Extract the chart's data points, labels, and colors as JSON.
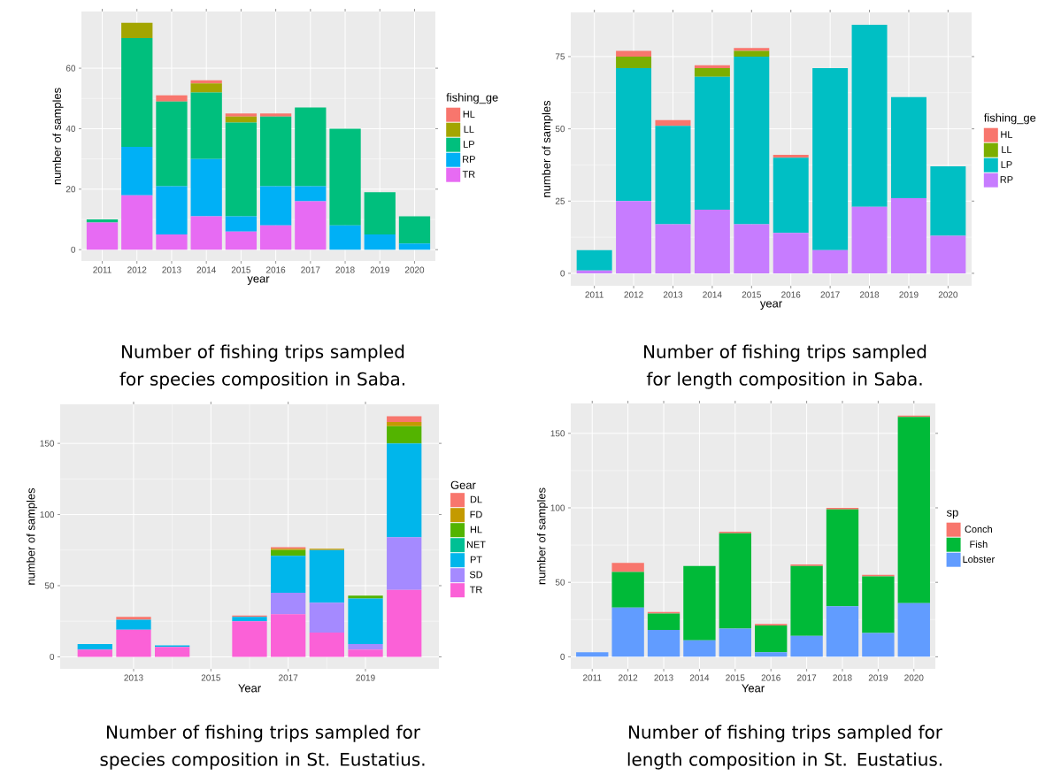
{
  "chart_data": [
    {
      "type": "bar",
      "stacked": true,
      "grid": true,
      "legend": "right",
      "xlabel": "year",
      "ylabel": "number of samples",
      "legend_title": "fishing_ge",
      "categories": [
        "2011",
        "2012",
        "2013",
        "2014",
        "2015",
        "2016",
        "2017",
        "2018",
        "2019",
        "2020"
      ],
      "ylim": [
        -3.75,
        78.75
      ],
      "yticks": [
        0,
        20,
        40,
        60
      ],
      "series": [
        {
          "name": "TR",
          "color": "#e76bf3",
          "values": [
            9,
            18,
            5,
            11,
            6,
            8,
            16,
            0,
            0,
            0
          ]
        },
        {
          "name": "RP",
          "color": "#00b0f6",
          "values": [
            0,
            16,
            16,
            19,
            5,
            13,
            5,
            8,
            5,
            2
          ]
        },
        {
          "name": "LP",
          "color": "#00bf7d",
          "values": [
            1,
            36,
            28,
            22,
            31,
            23,
            26,
            32,
            14,
            9
          ]
        },
        {
          "name": "LL",
          "color": "#a3a500",
          "values": [
            0,
            5,
            0,
            3,
            2,
            0,
            0,
            0,
            0,
            0
          ]
        },
        {
          "name": "HL",
          "color": "#f8766d",
          "values": [
            0,
            0,
            2,
            1,
            1,
            1,
            0,
            0,
            0,
            0
          ]
        }
      ],
      "annotations": [
        "Number of fishing trips sampled for species composition in Saba."
      ]
    },
    {
      "type": "bar",
      "stacked": true,
      "grid": true,
      "legend": "right",
      "xlabel": "year",
      "ylabel": "number of samples",
      "legend_title": "fishing_ge",
      "categories": [
        "2011",
        "2012",
        "2013",
        "2014",
        "2015",
        "2016",
        "2017",
        "2018",
        "2019",
        "2020"
      ],
      "ylim": [
        -4.3,
        90.3
      ],
      "yticks": [
        0,
        25,
        50,
        75
      ],
      "series": [
        {
          "name": "RP",
          "color": "#c77cff",
          "values": [
            1,
            25,
            17,
            22,
            17,
            14,
            8,
            23,
            26,
            13
          ]
        },
        {
          "name": "LP",
          "color": "#00bfc4",
          "values": [
            7,
            46,
            34,
            46,
            58,
            26,
            63,
            63,
            35,
            24
          ]
        },
        {
          "name": "LL",
          "color": "#7cae00",
          "values": [
            0,
            4,
            0,
            3,
            2,
            0,
            0,
            0,
            0,
            0
          ]
        },
        {
          "name": "HL",
          "color": "#f8766d",
          "values": [
            0,
            2,
            2,
            1,
            1,
            1,
            0,
            0,
            0,
            0
          ]
        }
      ],
      "annotations": [
        "Number of fishing trips sampled for length composition in Saba."
      ]
    },
    {
      "type": "bar",
      "stacked": true,
      "grid": true,
      "legend": "right",
      "xlabel": "Year",
      "ylabel": "number of samples",
      "legend_title": "Gear",
      "x": [
        2012,
        2013,
        2014,
        2016,
        2017,
        2018,
        2019,
        2020
      ],
      "xlim": [
        2011.1,
        2020.9
      ],
      "xticks": [
        2013,
        2015,
        2017,
        2019
      ],
      "ylim": [
        -8.45,
        177.45
      ],
      "yticks": [
        0,
        50,
        100,
        150
      ],
      "series": [
        {
          "name": "TR",
          "color": "#fb61d7",
          "values": [
            5,
            19,
            7,
            25,
            30,
            17,
            5,
            47
          ]
        },
        {
          "name": "SD",
          "color": "#a58aff",
          "values": [
            0,
            0,
            0,
            0,
            15,
            21,
            4,
            37
          ]
        },
        {
          "name": "PT",
          "color": "#00b6eb",
          "values": [
            4,
            7,
            1,
            3,
            26,
            37,
            32,
            66
          ]
        },
        {
          "name": "NET",
          "color": "#00c094",
          "values": [
            0,
            0,
            0,
            0,
            0,
            0,
            0,
            0
          ]
        },
        {
          "name": "HL",
          "color": "#53b400",
          "values": [
            0,
            0,
            0,
            0,
            4,
            0,
            2,
            12
          ]
        },
        {
          "name": "FD",
          "color": "#c49a00",
          "values": [
            0,
            0,
            0,
            0,
            1,
            1,
            0,
            3
          ]
        },
        {
          "name": "DL",
          "color": "#f8766d",
          "values": [
            0,
            2,
            0,
            1,
            1,
            0,
            0,
            4
          ]
        }
      ],
      "annotations": [
        "Number of fishing trips sampled for species composition in St. Eustatius."
      ]
    },
    {
      "type": "bar",
      "stacked": true,
      "grid": true,
      "legend": "right",
      "xlabel": "Year",
      "ylabel": "number of samples",
      "legend_title": "sp",
      "categories": [
        "2011",
        "2012",
        "2013",
        "2014",
        "2015",
        "2016",
        "2017",
        "2018",
        "2019",
        "2020"
      ],
      "ylim": [
        -8.1,
        170.1
      ],
      "yticks": [
        0,
        50,
        100,
        150
      ],
      "series": [
        {
          "name": "Lobster",
          "color": "#619cff",
          "values": [
            3,
            33,
            18,
            11,
            19,
            3,
            14,
            34,
            16,
            36
          ]
        },
        {
          "name": "Fish",
          "color": "#00ba38",
          "values": [
            0,
            24,
            11,
            50,
            64,
            18,
            47,
            65,
            38,
            125
          ]
        },
        {
          "name": "Conch",
          "color": "#f8766d",
          "values": [
            0,
            6,
            1,
            0,
            1,
            1,
            1,
            1,
            1,
            1
          ]
        }
      ],
      "annotations": [
        "Number of fishing trips sampled for length composition in St. Eustatius."
      ]
    }
  ]
}
